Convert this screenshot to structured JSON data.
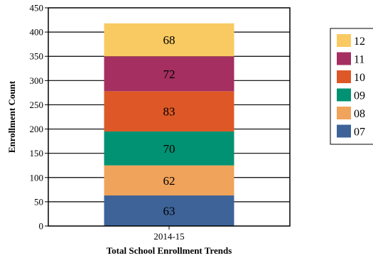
{
  "chart_data": {
    "type": "bar",
    "stacked": true,
    "categories": [
      "2014-15"
    ],
    "series": [
      {
        "name": "07",
        "values": [
          63
        ],
        "color": "#3d6399"
      },
      {
        "name": "08",
        "values": [
          62
        ],
        "color": "#f0a35a"
      },
      {
        "name": "09",
        "values": [
          70
        ],
        "color": "#009272"
      },
      {
        "name": "10",
        "values": [
          83
        ],
        "color": "#dd5826"
      },
      {
        "name": "11",
        "values": [
          72
        ],
        "color": "#a42f60"
      },
      {
        "name": "12",
        "values": [
          68
        ],
        "color": "#f9ca61"
      }
    ],
    "xlabel": "Total School Enrollment Trends",
    "ylabel": "Enrollment Count",
    "ylim": [
      0,
      450
    ],
    "yticks": [
      0,
      50,
      100,
      150,
      200,
      250,
      300,
      350,
      400,
      450
    ],
    "grid": true,
    "legend_position": "right"
  }
}
